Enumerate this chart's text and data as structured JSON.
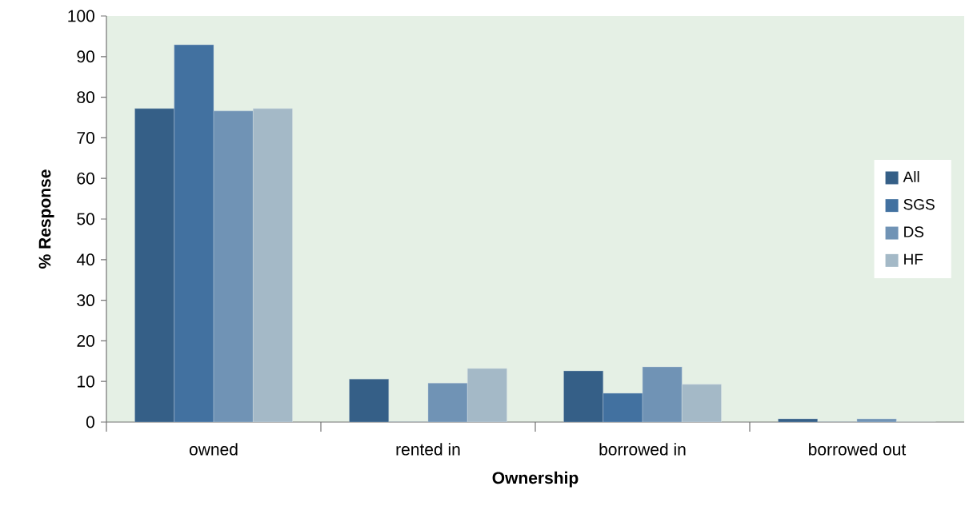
{
  "chart_data": {
    "type": "bar",
    "xlabel": "Ownership",
    "ylabel": "% Response",
    "categories": [
      "owned",
      "rented in",
      "borrowed in",
      "borrowed out"
    ],
    "series": [
      {
        "name": "All",
        "color": "#355f87",
        "values": [
          77.2,
          10.6,
          12.6,
          0.8
        ]
      },
      {
        "name": "SGS",
        "color": "#4271a0",
        "values": [
          92.9,
          0,
          7.1,
          0
        ]
      },
      {
        "name": "DS",
        "color": "#7093b5",
        "values": [
          76.6,
          9.6,
          13.6,
          0.8
        ]
      },
      {
        "name": "HF",
        "color": "#a4b9c7",
        "values": [
          77.2,
          13.2,
          9.3,
          0
        ]
      }
    ],
    "ylim": [
      0,
      100
    ],
    "yticks": [
      0,
      10,
      20,
      30,
      40,
      50,
      60,
      70,
      80,
      90,
      100
    ],
    "grid": false,
    "legend": "right"
  }
}
